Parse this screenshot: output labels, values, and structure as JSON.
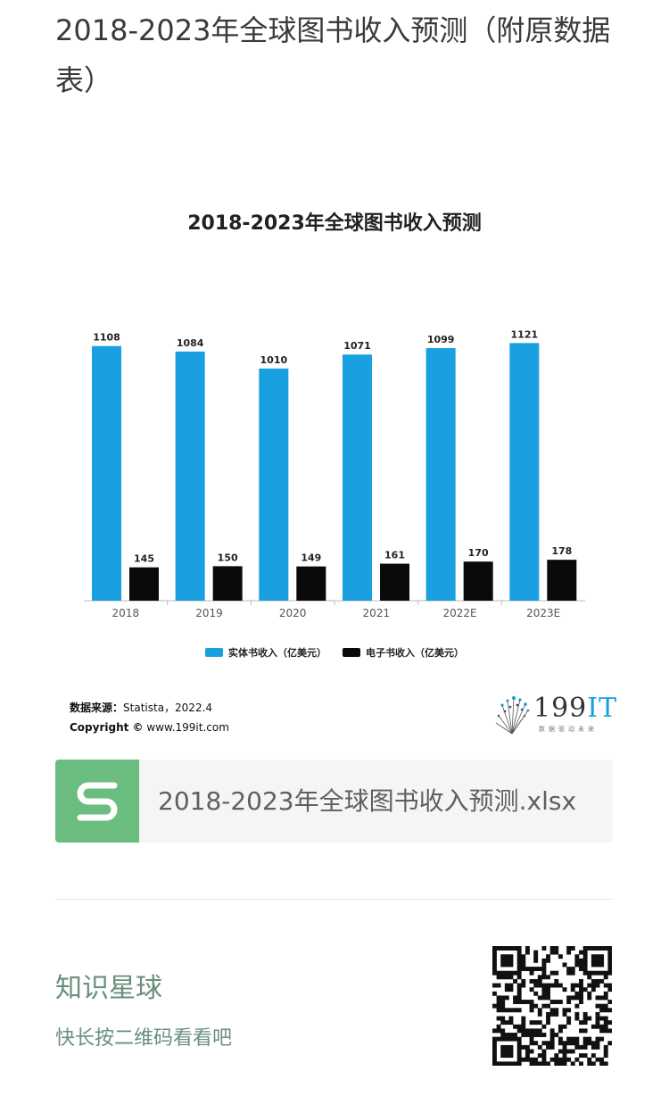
{
  "page": {
    "title": "2018-2023年全球图书收入预测（附原数据表）"
  },
  "colors": {
    "series1": "#1a9fe0",
    "series2": "#0a0a0a",
    "file_icon_bg": "#6bbd7f",
    "accent_green": "#6a8f7c"
  },
  "chart_data": {
    "type": "bar",
    "title": "2018-2023年全球图书收入预测",
    "categories": [
      "2018",
      "2019",
      "2020",
      "2021",
      "2022E",
      "2023E"
    ],
    "series": [
      {
        "name": "实体书收入（亿美元）",
        "values": [
          1108,
          1084,
          1010,
          1071,
          1099,
          1121
        ]
      },
      {
        "name": "电子书收入（亿美元）",
        "values": [
          145,
          150,
          149,
          161,
          170,
          178
        ]
      }
    ],
    "ylim": [
      0,
      1200
    ],
    "grid": false,
    "legend_position": "bottom"
  },
  "source": {
    "label": "数据来源：",
    "text": "Statista，2022.4",
    "copyright_label": "Copyright ©",
    "copyright_url": "www.199it.com"
  },
  "logo": {
    "text": "199",
    "text_suffix": "IT",
    "tagline": "数据驱动未来"
  },
  "file": {
    "icon": "spreadsheet-s-icon",
    "name": "2018-2023年全球图书收入预测.xlsx"
  },
  "planet": {
    "title": "知识星球",
    "subtitle": "快长按二维码看看吧",
    "qr_icon": "qr-code-icon"
  }
}
